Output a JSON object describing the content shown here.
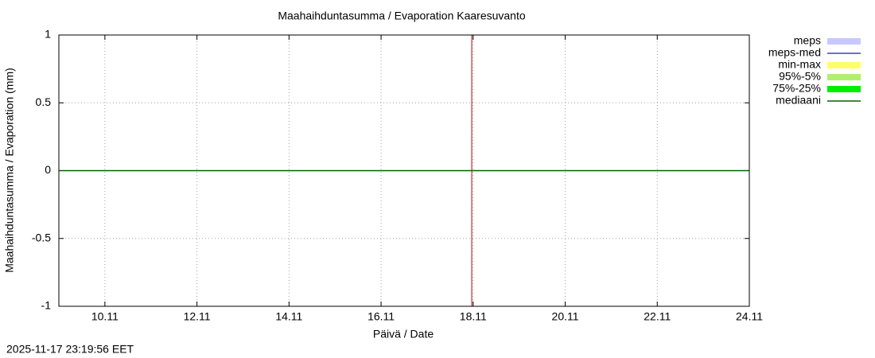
{
  "chart_data": {
    "type": "line",
    "title": "Maahaihduntasumma / Evaporation   Kaaresuvanto",
    "x_label": "Päivä / Date",
    "y_label": "Maahaihduntasumma / Evaporation (mm)",
    "timestamp": "2025-11-17 23:19:56 EET",
    "x": [
      9,
      24
    ],
    "xlim": [
      9,
      24
    ],
    "xticks": [
      {
        "value": 10,
        "label": "10.11"
      },
      {
        "value": 12,
        "label": "12.11"
      },
      {
        "value": 14,
        "label": "14.11"
      },
      {
        "value": 16,
        "label": "16.11"
      },
      {
        "value": 18,
        "label": "18.11"
      },
      {
        "value": 20,
        "label": "20.11"
      },
      {
        "value": 22,
        "label": "22.11"
      },
      {
        "value": 24,
        "label": "24.11"
      }
    ],
    "ylim": [
      -1,
      1
    ],
    "yticks": [
      -1,
      -0.5,
      0,
      0.5,
      1
    ],
    "grid": true,
    "current_time": 17.97,
    "current_time_color": "#cc0000",
    "legend": "outside-right",
    "series": [
      {
        "name": "meps",
        "color": "#c8c8ff",
        "style": "band"
      },
      {
        "name": "meps-med",
        "color": "#4040c0",
        "style": "line"
      },
      {
        "name": "min-max",
        "color": "#ffff66",
        "style": "band"
      },
      {
        "name": "95%-5%",
        "color": "#b0f070",
        "style": "band"
      },
      {
        "name": "75%-25%",
        "color": "#00ee00",
        "style": "band"
      },
      {
        "name": "mediaani",
        "color": "#006400",
        "style": "line",
        "values": [
          0,
          0
        ]
      }
    ]
  }
}
